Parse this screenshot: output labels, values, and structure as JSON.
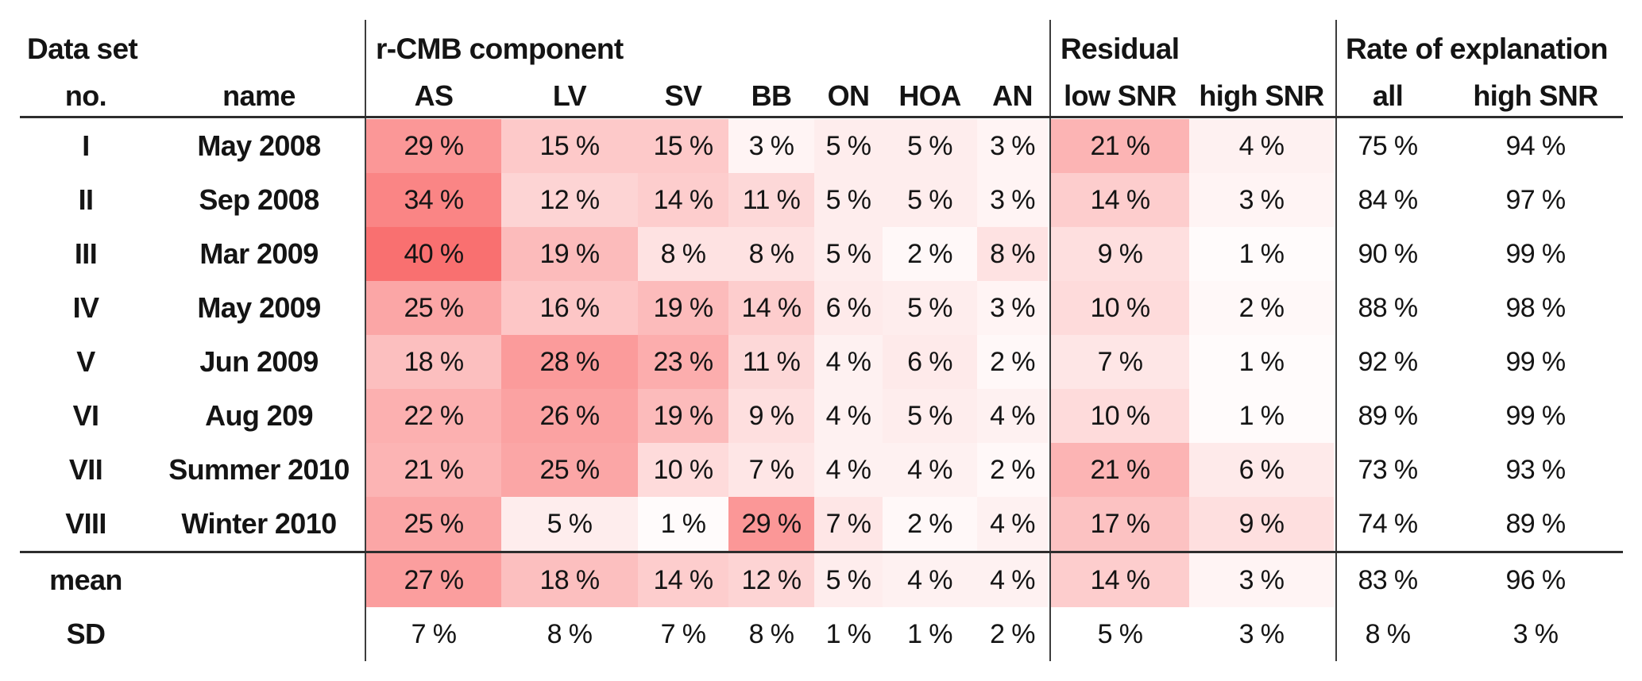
{
  "table": {
    "section_headers": {
      "dataset": "Data set",
      "component": "r-CMB component",
      "residual": "Residual",
      "rate": "Rate of explanation"
    },
    "column_headers": {
      "no": "no.",
      "name": "name",
      "component": [
        "AS",
        "LV",
        "SV",
        "BB",
        "ON",
        "HOA",
        "AN"
      ],
      "residual": [
        "low SNR",
        "high SNR"
      ],
      "rate": [
        "all",
        "high SNR"
      ]
    },
    "value_suffix": " %",
    "heat": {
      "max_value": 40,
      "base_color": "#F97070",
      "zero_color": "#FFFFFF"
    },
    "rows": [
      {
        "no": "I",
        "name": "May 2008",
        "component": [
          29,
          15,
          15,
          3,
          5,
          5,
          3
        ],
        "residual": [
          21,
          4
        ],
        "rate": [
          75,
          94
        ]
      },
      {
        "no": "II",
        "name": "Sep 2008",
        "component": [
          34,
          12,
          14,
          11,
          5,
          5,
          3
        ],
        "residual": [
          14,
          3
        ],
        "rate": [
          84,
          97
        ]
      },
      {
        "no": "III",
        "name": "Mar 2009",
        "component": [
          40,
          19,
          8,
          8,
          5,
          2,
          8
        ],
        "residual": [
          9,
          1
        ],
        "rate": [
          90,
          99
        ]
      },
      {
        "no": "IV",
        "name": "May 2009",
        "component": [
          25,
          16,
          19,
          14,
          6,
          5,
          3
        ],
        "residual": [
          10,
          2
        ],
        "rate": [
          88,
          98
        ]
      },
      {
        "no": "V",
        "name": "Jun 2009",
        "component": [
          18,
          28,
          23,
          11,
          4,
          6,
          2
        ],
        "residual": [
          7,
          1
        ],
        "rate": [
          92,
          99
        ]
      },
      {
        "no": "VI",
        "name": "Aug 209",
        "component": [
          22,
          26,
          19,
          9,
          4,
          5,
          4
        ],
        "residual": [
          10,
          1
        ],
        "rate": [
          89,
          99
        ]
      },
      {
        "no": "VII",
        "name": "Summer 2010",
        "component": [
          21,
          25,
          10,
          7,
          4,
          4,
          2
        ],
        "residual": [
          21,
          6
        ],
        "rate": [
          73,
          93
        ]
      },
      {
        "no": "VIII",
        "name": "Winter 2010",
        "component": [
          25,
          5,
          1,
          29,
          7,
          2,
          4
        ],
        "residual": [
          17,
          9
        ],
        "rate": [
          74,
          89
        ]
      }
    ],
    "summary_rows": [
      {
        "no": "mean",
        "name": "",
        "component": [
          27,
          18,
          14,
          12,
          5,
          4,
          4
        ],
        "residual": [
          14,
          3
        ],
        "rate": [
          83,
          96
        ],
        "heat": true
      },
      {
        "no": "SD",
        "name": "",
        "component": [
          7,
          8,
          7,
          8,
          1,
          1,
          2
        ],
        "residual": [
          5,
          3
        ],
        "rate": [
          8,
          3
        ],
        "heat": false
      }
    ]
  },
  "chart_data": {
    "type": "heatmap",
    "title": "",
    "unit": "%",
    "row_labels": [
      "I May 2008",
      "II Sep 2008",
      "III Mar 2009",
      "IV May 2009",
      "V Jun 2009",
      "VI Aug 209",
      "VII Summer 2010",
      "VIII Winter 2010",
      "mean",
      "SD"
    ],
    "columns": [
      "AS",
      "LV",
      "SV",
      "BB",
      "ON",
      "HOA",
      "AN",
      "Residual low SNR",
      "Residual high SNR",
      "Rate of explanation all",
      "Rate of explanation high SNR"
    ],
    "values": [
      [
        29,
        15,
        15,
        3,
        5,
        5,
        3,
        21,
        4,
        75,
        94
      ],
      [
        34,
        12,
        14,
        11,
        5,
        5,
        3,
        14,
        3,
        84,
        97
      ],
      [
        40,
        19,
        8,
        8,
        5,
        2,
        8,
        9,
        1,
        90,
        99
      ],
      [
        25,
        16,
        19,
        14,
        6,
        5,
        3,
        10,
        2,
        88,
        98
      ],
      [
        18,
        28,
        23,
        11,
        4,
        6,
        2,
        7,
        1,
        92,
        99
      ],
      [
        22,
        26,
        19,
        9,
        4,
        5,
        4,
        10,
        1,
        89,
        99
      ],
      [
        21,
        25,
        10,
        7,
        4,
        4,
        2,
        21,
        6,
        73,
        93
      ],
      [
        25,
        5,
        1,
        29,
        7,
        2,
        4,
        17,
        9,
        74,
        89
      ],
      [
        27,
        18,
        14,
        12,
        5,
        4,
        4,
        14,
        3,
        83,
        96
      ],
      [
        7,
        8,
        7,
        8,
        1,
        1,
        2,
        5,
        3,
        8,
        3
      ]
    ],
    "color_scale": {
      "min": 0,
      "max": 40,
      "min_color": "#FFFFFF",
      "max_color": "#F97070"
    },
    "legend_position": "none",
    "grid": false,
    "notes": "Heat shading applies to r-CMB component and Residual columns (and mean row); Rate of explanation columns and SD row are uncolored."
  }
}
